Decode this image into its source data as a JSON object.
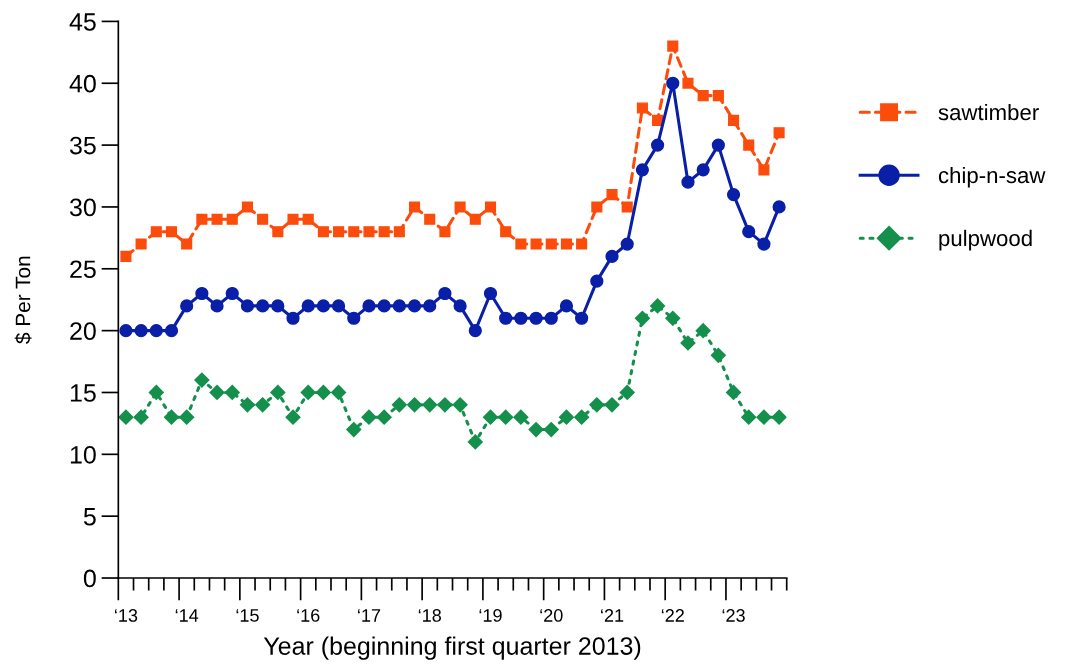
{
  "chart_data": {
    "type": "line",
    "xlabel": "Year (beginning first quarter 2013)",
    "ylabel": "$ Per Ton",
    "categories": [
      "‘13",
      null,
      null,
      null,
      "‘14",
      null,
      null,
      null,
      "‘15",
      null,
      null,
      null,
      "‘16",
      null,
      null,
      null,
      "‘17",
      null,
      null,
      null,
      "‘18",
      null,
      null,
      null,
      "‘19",
      null,
      null,
      null,
      "‘20",
      null,
      null,
      null,
      "‘21",
      null,
      null,
      null,
      "‘22",
      null,
      null,
      null,
      "‘23",
      null,
      null,
      null
    ],
    "series": [
      {
        "name": "sawtimber",
        "color": "#fc4c0c",
        "marker": "square",
        "line_style": "dashed",
        "values": [
          26,
          27,
          28,
          28,
          27,
          29,
          29,
          29,
          30,
          29,
          28,
          29,
          29,
          28,
          28,
          28,
          28,
          28,
          28,
          30,
          29,
          28,
          30,
          29,
          30,
          28,
          27,
          27,
          27,
          27,
          27,
          30,
          31,
          30,
          38,
          37,
          43,
          40,
          39,
          39,
          37,
          35,
          33,
          36
        ]
      },
      {
        "name": "chip-n-saw",
        "color": "#0a1fa8",
        "marker": "circle",
        "line_style": "solid",
        "values": [
          20,
          20,
          20,
          20,
          22,
          23,
          22,
          23,
          22,
          22,
          22,
          21,
          22,
          22,
          22,
          21,
          22,
          22,
          22,
          22,
          22,
          23,
          22,
          20,
          23,
          21,
          21,
          21,
          21,
          22,
          21,
          24,
          26,
          27,
          33,
          35,
          40,
          32,
          33,
          35,
          31,
          28,
          27,
          30
        ]
      },
      {
        "name": "pulpwood",
        "color": "#14904c",
        "marker": "diamond",
        "line_style": "dotted",
        "values": [
          13,
          13,
          15,
          13,
          13,
          16,
          15,
          15,
          14,
          14,
          15,
          13,
          15,
          15,
          15,
          12,
          13,
          13,
          14,
          14,
          14,
          14,
          14,
          11,
          13,
          13,
          13,
          12,
          12,
          13,
          13,
          14,
          14,
          15,
          21,
          22,
          21,
          19,
          20,
          18,
          15,
          13,
          13,
          13
        ]
      }
    ],
    "ylim": [
      0,
      45
    ],
    "yticks": [
      0,
      5,
      10,
      15,
      20,
      25,
      30,
      35,
      40,
      45
    ],
    "grid": false,
    "legend": "right"
  }
}
